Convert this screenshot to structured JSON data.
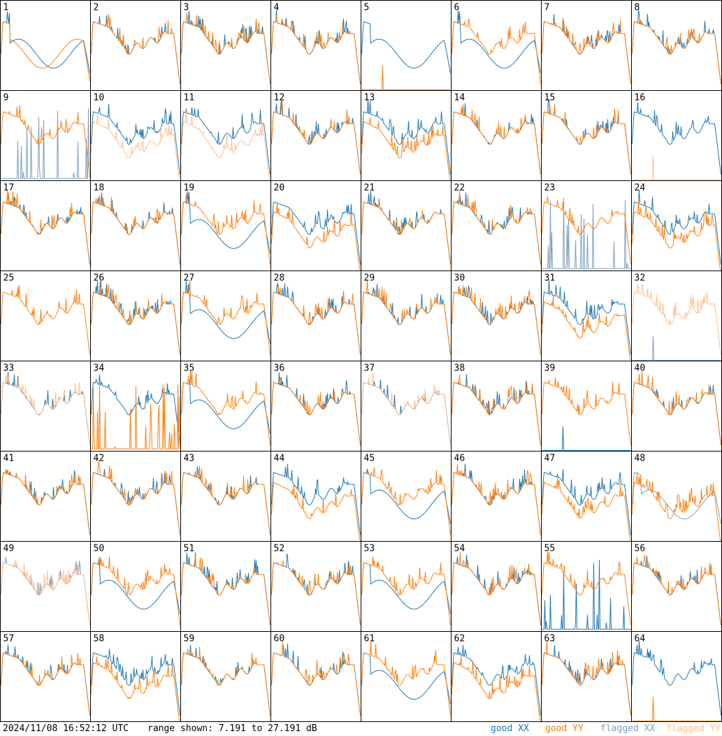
{
  "chart_data": {
    "type": "line",
    "layout": "8x8 small-multiples grid of per-tile spectra",
    "y_range_db": [
      7.191,
      27.191
    ],
    "timestamp": "2024/11/08 16:52:12 UTC",
    "range_text": "range shown: 7.191 to 27.191 dB",
    "legend": [
      {
        "key": "good_xx",
        "label": "good XX",
        "color": "#1f77b4"
      },
      {
        "key": "good_yy",
        "label": "good YY",
        "color": "#ff7f0e"
      },
      {
        "key": "flagged_xx",
        "label": "flagged XX",
        "color": "#7f9fbf"
      },
      {
        "key": "flagged_yy",
        "label": "flagged YY",
        "color": "#ffbf8f"
      }
    ],
    "tiles": [
      {
        "label": "1",
        "xx": "good",
        "yy": "good",
        "xx_shape": "wave",
        "yy_shape": "wave"
      },
      {
        "label": "2",
        "xx": "good",
        "yy": "good",
        "xx_shape": "normal",
        "yy_shape": "normal"
      },
      {
        "label": "3",
        "xx": "good",
        "yy": "good",
        "xx_shape": "normal",
        "yy_shape": "normal"
      },
      {
        "label": "4",
        "xx": "good",
        "yy": "good",
        "xx_shape": "normal",
        "yy_shape": "normal"
      },
      {
        "label": "5",
        "xx": "good",
        "yy": "good",
        "xx_shape": "wave",
        "yy_shape": "dead"
      },
      {
        "label": "6",
        "xx": "good",
        "yy": "good",
        "xx_shape": "wave",
        "yy_shape": "normal"
      },
      {
        "label": "7",
        "xx": "good",
        "yy": "good",
        "xx_shape": "normal",
        "yy_shape": "normal"
      },
      {
        "label": "8",
        "xx": "good",
        "yy": "good",
        "xx_shape": "normal",
        "yy_shape": "normal"
      },
      {
        "label": "9",
        "xx": "flagged",
        "yy": "good",
        "xx_shape": "spikes",
        "yy_shape": "normal"
      },
      {
        "label": "10",
        "xx": "good",
        "yy": "flagged",
        "xx_shape": "normal",
        "yy_shape": "low"
      },
      {
        "label": "11",
        "xx": "good",
        "yy": "flagged",
        "xx_shape": "normal",
        "yy_shape": "low"
      },
      {
        "label": "12",
        "xx": "good",
        "yy": "good",
        "xx_shape": "normal",
        "yy_shape": "normal"
      },
      {
        "label": "13",
        "xx": "good",
        "yy": "good",
        "xx_shape": "normal",
        "yy_shape": "low"
      },
      {
        "label": "14",
        "xx": "good",
        "yy": "good",
        "xx_shape": "normal",
        "yy_shape": "normal"
      },
      {
        "label": "15",
        "xx": "good",
        "yy": "good",
        "xx_shape": "normal",
        "yy_shape": "normal"
      },
      {
        "label": "16",
        "xx": "good",
        "yy": "flagged",
        "xx_shape": "normal",
        "yy_shape": "dead"
      },
      {
        "label": "17",
        "xx": "good",
        "yy": "good",
        "xx_shape": "normal",
        "yy_shape": "normal"
      },
      {
        "label": "18",
        "xx": "good",
        "yy": "good",
        "xx_shape": "normal",
        "yy_shape": "normal"
      },
      {
        "label": "19",
        "xx": "good",
        "yy": "good",
        "xx_shape": "wave",
        "yy_shape": "normal"
      },
      {
        "label": "20",
        "xx": "good",
        "yy": "good",
        "xx_shape": "normal",
        "yy_shape": "low"
      },
      {
        "label": "21",
        "xx": "good",
        "yy": "good",
        "xx_shape": "normal",
        "yy_shape": "normal"
      },
      {
        "label": "22",
        "xx": "good",
        "yy": "good",
        "xx_shape": "normal",
        "yy_shape": "normal"
      },
      {
        "label": "23",
        "xx": "flagged",
        "yy": "good",
        "xx_shape": "spikes",
        "yy_shape": "normal"
      },
      {
        "label": "24",
        "xx": "good",
        "yy": "good",
        "xx_shape": "normal",
        "yy_shape": "low"
      },
      {
        "label": "25",
        "xx": "good",
        "yy": "good",
        "xx_shape": "hidden",
        "yy_shape": "normal"
      },
      {
        "label": "26",
        "xx": "good",
        "yy": "good",
        "xx_shape": "normal",
        "yy_shape": "normal"
      },
      {
        "label": "27",
        "xx": "good",
        "yy": "good",
        "xx_shape": "wave",
        "yy_shape": "normal"
      },
      {
        "label": "28",
        "xx": "good",
        "yy": "good",
        "xx_shape": "normal",
        "yy_shape": "normal"
      },
      {
        "label": "29",
        "xx": "good",
        "yy": "good",
        "xx_shape": "normal",
        "yy_shape": "normal"
      },
      {
        "label": "30",
        "xx": "good",
        "yy": "good",
        "xx_shape": "normal",
        "yy_shape": "normal"
      },
      {
        "label": "31",
        "xx": "good",
        "yy": "good",
        "xx_shape": "normal",
        "yy_shape": "low"
      },
      {
        "label": "32",
        "xx": "flagged",
        "yy": "flagged",
        "xx_shape": "dead",
        "yy_shape": "normal"
      },
      {
        "label": "33",
        "xx": "good",
        "yy": "flagged",
        "xx_shape": "normal",
        "yy_shape": "normal"
      },
      {
        "label": "34",
        "xx": "good",
        "yy": "good",
        "xx_shape": "normal",
        "yy_shape": "spikes"
      },
      {
        "label": "35",
        "xx": "good",
        "yy": "good",
        "xx_shape": "wave",
        "yy_shape": "normal"
      },
      {
        "label": "36",
        "xx": "good",
        "yy": "good",
        "xx_shape": "normal",
        "yy_shape": "normal"
      },
      {
        "label": "37",
        "xx": "good",
        "yy": "flagged",
        "xx_shape": "normal",
        "yy_shape": "normal"
      },
      {
        "label": "38",
        "xx": "good",
        "yy": "good",
        "xx_shape": "normal",
        "yy_shape": "normal"
      },
      {
        "label": "39",
        "xx": "good",
        "yy": "good",
        "xx_shape": "dead",
        "yy_shape": "normal"
      },
      {
        "label": "40",
        "xx": "good",
        "yy": "good",
        "xx_shape": "normal",
        "yy_shape": "normal"
      },
      {
        "label": "41",
        "xx": "good",
        "yy": "good",
        "xx_shape": "normal",
        "yy_shape": "normal"
      },
      {
        "label": "42",
        "xx": "good",
        "yy": "good",
        "xx_shape": "normal",
        "yy_shape": "normal"
      },
      {
        "label": "43",
        "xx": "good",
        "yy": "good",
        "xx_shape": "normal",
        "yy_shape": "normal"
      },
      {
        "label": "44",
        "xx": "good",
        "yy": "good",
        "xx_shape": "normal",
        "yy_shape": "low"
      },
      {
        "label": "45",
        "xx": "good",
        "yy": "good",
        "xx_shape": "wave",
        "yy_shape": "normal"
      },
      {
        "label": "46",
        "xx": "good",
        "yy": "good",
        "xx_shape": "normal",
        "yy_shape": "normal"
      },
      {
        "label": "47",
        "xx": "good",
        "yy": "good",
        "xx_shape": "normal",
        "yy_shape": "low"
      },
      {
        "label": "48",
        "xx": "flagged",
        "yy": "good",
        "xx_shape": "wave",
        "yy_shape": "low"
      },
      {
        "label": "49",
        "xx": "flagged",
        "yy": "flagged",
        "xx_shape": "normal",
        "yy_shape": "normal"
      },
      {
        "label": "50",
        "xx": "good",
        "yy": "good",
        "xx_shape": "wave",
        "yy_shape": "normal"
      },
      {
        "label": "51",
        "xx": "good",
        "yy": "good",
        "xx_shape": "normal",
        "yy_shape": "normal"
      },
      {
        "label": "52",
        "xx": "good",
        "yy": "good",
        "xx_shape": "normal",
        "yy_shape": "normal"
      },
      {
        "label": "53",
        "xx": "good",
        "yy": "good",
        "xx_shape": "wave",
        "yy_shape": "normal"
      },
      {
        "label": "54",
        "xx": "good",
        "yy": "good",
        "xx_shape": "normal",
        "yy_shape": "normal"
      },
      {
        "label": "55",
        "xx": "good",
        "yy": "good",
        "xx_shape": "spikes",
        "yy_shape": "normal"
      },
      {
        "label": "56",
        "xx": "good",
        "yy": "good",
        "xx_shape": "normal",
        "yy_shape": "normal"
      },
      {
        "label": "57",
        "xx": "good",
        "yy": "good",
        "xx_shape": "normal",
        "yy_shape": "normal"
      },
      {
        "label": "58",
        "xx": "good",
        "yy": "good",
        "xx_shape": "normal",
        "yy_shape": "low"
      },
      {
        "label": "59",
        "xx": "good",
        "yy": "good",
        "xx_shape": "normal",
        "yy_shape": "normal"
      },
      {
        "label": "60",
        "xx": "good",
        "yy": "good",
        "xx_shape": "normal",
        "yy_shape": "normal"
      },
      {
        "label": "61",
        "xx": "good",
        "yy": "good",
        "xx_shape": "wave",
        "yy_shape": "normal"
      },
      {
        "label": "62",
        "xx": "good",
        "yy": "good",
        "xx_shape": "normal",
        "yy_shape": "low"
      },
      {
        "label": "63",
        "xx": "good",
        "yy": "good",
        "xx_shape": "normal",
        "yy_shape": "normal"
      },
      {
        "label": "64",
        "xx": "good",
        "yy": "good",
        "xx_shape": "normal",
        "yy_shape": "dead"
      }
    ]
  }
}
